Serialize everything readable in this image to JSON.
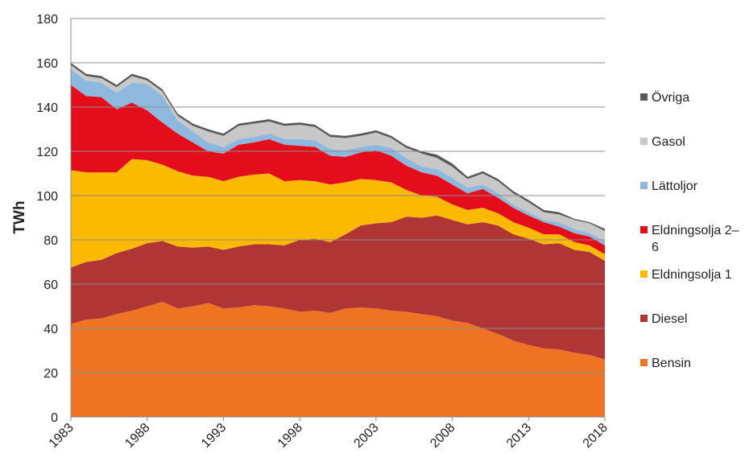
{
  "chart_data": {
    "type": "stacked_area",
    "ylabel": "TWh",
    "x": [
      1983,
      1984,
      1985,
      1986,
      1987,
      1988,
      1989,
      1990,
      1991,
      1992,
      1993,
      1994,
      1995,
      1996,
      1997,
      1998,
      1999,
      2000,
      2001,
      2002,
      2003,
      2004,
      2005,
      2006,
      2007,
      2008,
      2009,
      2010,
      2011,
      2012,
      2013,
      2014,
      2015,
      2016,
      2017,
      2018
    ],
    "xlim": [
      1983,
      2018
    ],
    "xticks": [
      1983,
      1988,
      1993,
      1998,
      2003,
      2008,
      2013,
      2018
    ],
    "ylim": [
      0,
      180
    ],
    "yticks": [
      0,
      20,
      40,
      60,
      80,
      100,
      120,
      140,
      160,
      180
    ],
    "grid": true,
    "legend": "right",
    "series": [
      {
        "name": "Bensin",
        "color": "#ee7322",
        "values": [
          42,
          44,
          44.5,
          46.5,
          48,
          50,
          52,
          49,
          50,
          51.5,
          49,
          49.5,
          50.5,
          50,
          49,
          47.5,
          48,
          47,
          49,
          49.5,
          49,
          48,
          47.5,
          46.5,
          45.5,
          43.5,
          42.5,
          40,
          37.5,
          34.5,
          32.5,
          31,
          30.5,
          29,
          28,
          26
        ]
      },
      {
        "name": "Diesel",
        "color": "#b03535",
        "values": [
          25.5,
          26,
          26.5,
          27.5,
          28,
          28.5,
          27.5,
          28,
          26.5,
          25.5,
          26.5,
          27.5,
          27.5,
          28,
          28.5,
          32.5,
          32.5,
          32,
          33.5,
          37,
          38.5,
          40,
          43,
          43.5,
          45.5,
          45.5,
          44.5,
          48,
          49,
          48,
          48,
          47,
          48,
          46.5,
          46.5,
          44.5
        ]
      },
      {
        "name": "Eldningsolja 1",
        "color": "#fbb900",
        "values": [
          44,
          40.5,
          39.5,
          36.5,
          40.5,
          37.5,
          34.5,
          34,
          32.5,
          31.5,
          31,
          31.5,
          31.5,
          32,
          29,
          27,
          26,
          26,
          23.5,
          21,
          19.5,
          18,
          12,
          10,
          8.5,
          7,
          6.5,
          6.5,
          5.5,
          5.5,
          5,
          4.5,
          4,
          3.5,
          3,
          3
        ]
      },
      {
        "name": "Eldningsolja 2–6",
        "color": "#e30d1b",
        "values": [
          38.5,
          34.5,
          34,
          28.5,
          25.5,
          22.5,
          19,
          17,
          15,
          11.5,
          12.5,
          14.5,
          14.5,
          15.5,
          16.5,
          15.5,
          15.5,
          13,
          11.5,
          12,
          13.5,
          12,
          11,
          10.5,
          9.5,
          9,
          7.5,
          8.5,
          7,
          6.5,
          5.5,
          5.5,
          3.5,
          4,
          4,
          4
        ]
      },
      {
        "name": "Lättoljor",
        "color": "#8fb8de",
        "values": [
          7,
          7,
          6.5,
          7.5,
          9,
          12,
          12,
          6,
          5,
          4,
          3,
          2.5,
          2.5,
          2.5,
          2.5,
          3,
          3,
          3,
          3,
          2.5,
          2.5,
          3.5,
          3.5,
          2.5,
          3,
          3,
          2.5,
          2,
          2,
          1.5,
          1.5,
          1,
          2,
          2,
          1.5,
          2
        ]
      },
      {
        "name": "Gasol",
        "color": "#c8c8c8",
        "values": [
          2,
          2,
          2,
          2.5,
          3,
          1.5,
          2,
          2,
          2.5,
          5,
          5,
          6,
          6,
          5.5,
          6,
          6.5,
          6,
          5.5,
          5.5,
          5,
          5.5,
          4.5,
          4.5,
          6,
          5,
          5,
          4,
          5,
          5.5,
          5,
          4.5,
          3.5,
          3.5,
          4,
          4.5,
          4.5
        ]
      },
      {
        "name": "Övriga",
        "color": "#595959",
        "values": [
          1,
          1,
          1,
          1,
          1,
          1,
          1,
          1,
          1,
          1,
          1,
          1,
          1,
          1,
          1,
          1,
          1,
          1,
          1,
          1,
          1,
          1,
          1,
          1,
          1.5,
          1.5,
          1,
          1,
          1,
          1,
          1,
          1,
          1,
          0.5,
          0.5,
          1
        ]
      }
    ]
  }
}
